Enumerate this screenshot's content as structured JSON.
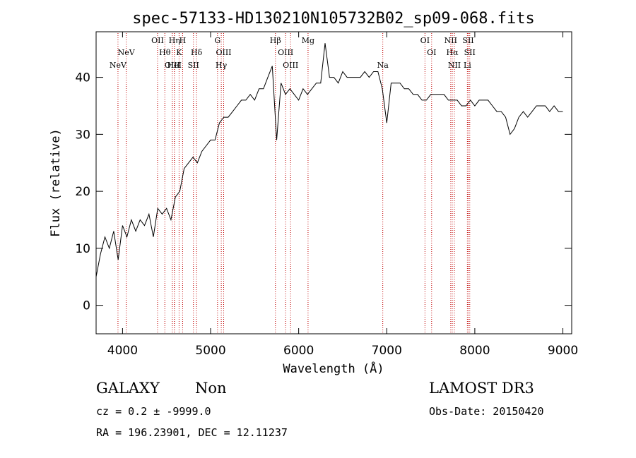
{
  "chart_data": {
    "type": "line",
    "title": "spec-57133-HD130210N105732B02_sp09-068.fits",
    "xlabel": "Wavelength (Å)",
    "ylabel": "Flux (relative)",
    "xlim": [
      3700,
      9100
    ],
    "ylim": [
      -5,
      48
    ],
    "xticks": [
      4000,
      5000,
      6000,
      7000,
      8000,
      9000
    ],
    "yticks": [
      0,
      10,
      20,
      30,
      40
    ],
    "series": [
      {
        "name": "flux",
        "x": [
          3700,
          3750,
          3800,
          3850,
          3900,
          3950,
          4000,
          4050,
          4100,
          4150,
          4200,
          4250,
          4300,
          4350,
          4400,
          4450,
          4500,
          4550,
          4600,
          4650,
          4700,
          4750,
          4800,
          4850,
          4900,
          4950,
          5000,
          5050,
          5100,
          5150,
          5200,
          5250,
          5300,
          5350,
          5400,
          5450,
          5500,
          5550,
          5600,
          5650,
          5700,
          5750,
          5800,
          5850,
          5900,
          5950,
          6000,
          6050,
          6100,
          6150,
          6200,
          6250,
          6300,
          6350,
          6400,
          6450,
          6500,
          6550,
          6600,
          6650,
          6700,
          6750,
          6800,
          6850,
          6900,
          6950,
          7000,
          7050,
          7100,
          7150,
          7200,
          7250,
          7300,
          7350,
          7400,
          7450,
          7500,
          7550,
          7600,
          7650,
          7700,
          7750,
          7800,
          7850,
          7900,
          7950,
          8000,
          8050,
          8100,
          8150,
          8200,
          8250,
          8300,
          8350,
          8400,
          8450,
          8500,
          8550,
          8600,
          8650,
          8700,
          8750,
          8800,
          8850,
          8900,
          8950,
          9000
        ],
        "y": [
          5,
          9,
          12,
          10,
          13,
          8,
          14,
          12,
          15,
          13,
          15,
          14,
          16,
          12,
          17,
          16,
          17,
          15,
          19,
          20,
          24,
          25,
          26,
          25,
          27,
          28,
          29,
          29,
          32,
          33,
          33,
          34,
          35,
          36,
          36,
          37,
          36,
          38,
          38,
          40,
          42,
          29,
          39,
          37,
          38,
          37,
          36,
          38,
          37,
          38,
          39,
          39,
          46,
          40,
          40,
          39,
          41,
          40,
          40,
          40,
          40,
          41,
          40,
          41,
          41,
          38,
          32,
          39,
          39,
          39,
          38,
          38,
          37,
          37,
          36,
          36,
          37,
          37,
          37,
          37,
          36,
          36,
          36,
          35,
          35,
          36,
          35,
          36,
          36,
          36,
          35,
          34,
          34,
          33,
          30,
          31,
          33,
          34,
          33,
          34,
          35,
          35,
          35,
          34,
          35,
          34,
          34
        ]
      }
    ],
    "spectral_lines": [
      {
        "name": "NeV",
        "wavelength": 3346,
        "row": 3
      },
      {
        "name": "NeV",
        "wavelength": 3426,
        "row": 2
      },
      {
        "name": "OII",
        "wavelength": 3727,
        "row": 1
      },
      {
        "name": "OIII",
        "wavelength": 3869,
        "row": 3
      },
      {
        "name": "Hη",
        "wavelength": 3889,
        "row": 1
      },
      {
        "name": "Hθ",
        "wavelength": 3797,
        "row": 2
      },
      {
        "name": "HeI",
        "wavelength": 3889,
        "row": 3
      },
      {
        "name": "K",
        "wavelength": 3934,
        "row": 2
      },
      {
        "name": "H",
        "wavelength": 3968,
        "row": 1
      },
      {
        "name": "Hδ",
        "wavelength": 4102,
        "row": 2
      },
      {
        "name": "SII",
        "wavelength": 4072,
        "row": 3
      },
      {
        "name": "G",
        "wavelength": 4304,
        "row": 1
      },
      {
        "name": "OIII",
        "wavelength": 4363,
        "row": 2
      },
      {
        "name": "Hγ",
        "wavelength": 4340,
        "row": 3
      },
      {
        "name": "Hβ",
        "wavelength": 4861,
        "row": 1
      },
      {
        "name": "OIII",
        "wavelength": 4959,
        "row": 2
      },
      {
        "name": "OIII",
        "wavelength": 5007,
        "row": 3
      },
      {
        "name": "Mg",
        "wavelength": 5175,
        "row": 1
      },
      {
        "name": "Na",
        "wavelength": 5894,
        "row": 3
      },
      {
        "name": "OI",
        "wavelength": 6300,
        "row": 1
      },
      {
        "name": "OI",
        "wavelength": 6364,
        "row": 2
      },
      {
        "name": "NII",
        "wavelength": 6548,
        "row": 1
      },
      {
        "name": "Hα",
        "wavelength": 6563,
        "row": 2
      },
      {
        "name": "NII",
        "wavelength": 6583,
        "row": 3
      },
      {
        "name": "SII",
        "wavelength": 6716,
        "row": 1
      },
      {
        "name": "SII",
        "wavelength": 6731,
        "row": 2
      },
      {
        "name": "Li",
        "wavelength": 6708,
        "row": 3
      }
    ],
    "redshift": 0.18
  },
  "info": {
    "class": "GALAXY",
    "subclass": "Non",
    "survey": "LAMOST DR3",
    "cz": "cz = 0.2 ± -9999.0",
    "obs_date": "Obs-Date: 20150420",
    "coords": "RA = 196.23901, DEC =  12.11237"
  },
  "colors": {
    "line_marker": "#c00000",
    "spectrum": "#000000"
  }
}
